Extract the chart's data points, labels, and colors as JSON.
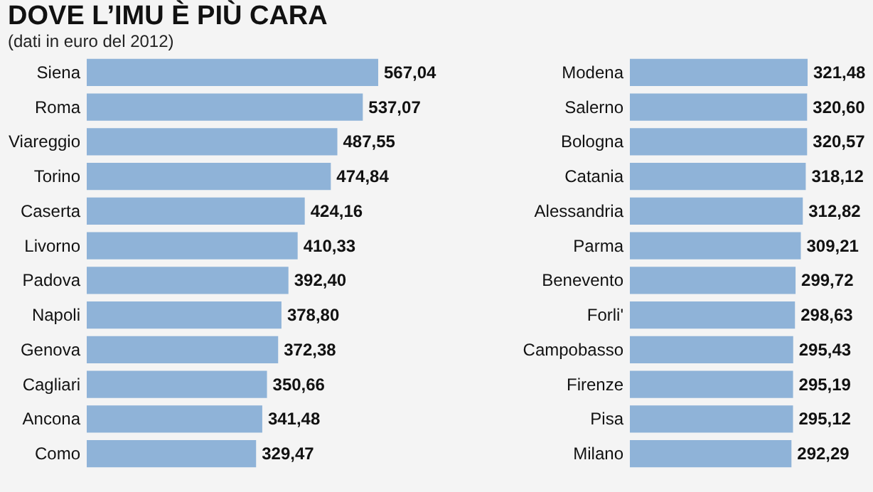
{
  "chart_data": [
    {
      "type": "bar",
      "orientation": "horizontal",
      "title": "DOVE L’IMU È PIÙ CARA",
      "subtitle": "(dati in euro del 2012)",
      "categories": [
        "Siena",
        "Roma",
        "Viareggio",
        "Torino",
        "Caserta",
        "Livorno",
        "Padova",
        "Napoli",
        "Genova",
        "Cagliari",
        "Ancona",
        "Como"
      ],
      "values": [
        567.04,
        537.07,
        487.55,
        474.84,
        424.16,
        410.33,
        392.4,
        378.8,
        372.38,
        350.66,
        341.48,
        329.47
      ],
      "value_labels": [
        "567,04",
        "537,07",
        "487,55",
        "474,84",
        "424,16",
        "410,33",
        "392,40",
        "378,80",
        "372,38",
        "350,66",
        "341,48",
        "329,47"
      ],
      "color": "#8fb3d8"
    },
    {
      "type": "bar",
      "orientation": "horizontal",
      "categories": [
        "Modena",
        "Salerno",
        "Bologna",
        "Catania",
        "Alessandria",
        "Parma",
        "Benevento",
        "Forli'",
        "Campobasso",
        "Firenze",
        "Pisa",
        "Milano"
      ],
      "values": [
        321.48,
        320.6,
        320.57,
        318.12,
        312.82,
        309.21,
        299.72,
        298.63,
        295.43,
        295.19,
        295.12,
        292.29
      ],
      "value_labels": [
        "321,48",
        "320,60",
        "320,57",
        "318,12",
        "312,82",
        "309,21",
        "299,72",
        "298,63",
        "295,43",
        "295,19",
        "295,12",
        "292,29"
      ],
      "color": "#8fb3d8"
    }
  ]
}
